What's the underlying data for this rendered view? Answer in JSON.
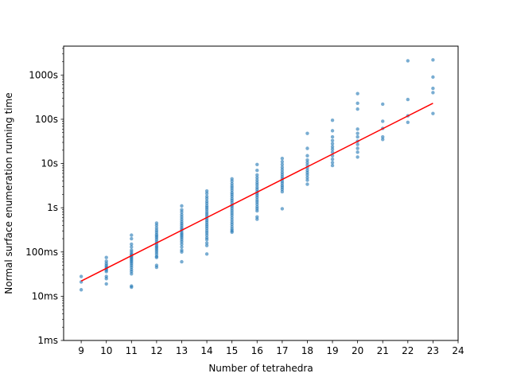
{
  "chart_data": {
    "type": "scatter",
    "title": "",
    "xlabel": "Number of tetrahedra",
    "ylabel": "Normal surface enumeration running time",
    "xlim": [
      8.3,
      24.0
    ],
    "ylim": [
      0.001,
      4500
    ],
    "yscale": "log",
    "grid": false,
    "x_ticks": [
      9,
      10,
      11,
      12,
      13,
      14,
      15,
      16,
      17,
      18,
      19,
      20,
      21,
      22,
      23,
      24
    ],
    "x_tick_labels": [
      "9",
      "10",
      "11",
      "12",
      "13",
      "14",
      "15",
      "16",
      "17",
      "18",
      "19",
      "20",
      "21",
      "22",
      "23",
      "24"
    ],
    "y_ticks": [
      0.001,
      0.01,
      0.1,
      1,
      10,
      100,
      1000
    ],
    "y_tick_labels": [
      "1ms",
      "10ms",
      "100ms",
      "1s",
      "10s",
      "100s",
      "1000s"
    ],
    "point_color": "#1f77b4",
    "fit_color": "#ff0000",
    "series": [
      {
        "points": [
          {
            "x": 9,
            "y": 0.028
          },
          {
            "x": 9,
            "y": 0.021
          },
          {
            "x": 9,
            "y": 0.014
          },
          {
            "x": 10,
            "y": 0.075
          },
          {
            "x": 10,
            "y": 0.062
          },
          {
            "x": 10,
            "y": 0.055
          },
          {
            "x": 10,
            "y": 0.05
          },
          {
            "x": 10,
            "y": 0.046
          },
          {
            "x": 10,
            "y": 0.042
          },
          {
            "x": 10,
            "y": 0.039
          },
          {
            "x": 10,
            "y": 0.036
          },
          {
            "x": 10,
            "y": 0.028
          },
          {
            "x": 10,
            "y": 0.025
          },
          {
            "x": 10,
            "y": 0.019
          },
          {
            "x": 11,
            "y": 0.24
          },
          {
            "x": 11,
            "y": 0.2
          },
          {
            "x": 11,
            "y": 0.15
          },
          {
            "x": 11,
            "y": 0.13
          },
          {
            "x": 11,
            "y": 0.11
          },
          {
            "x": 11,
            "y": 0.1
          },
          {
            "x": 11,
            "y": 0.09
          },
          {
            "x": 11,
            "y": 0.085
          },
          {
            "x": 11,
            "y": 0.08
          },
          {
            "x": 11,
            "y": 0.075
          },
          {
            "x": 11,
            "y": 0.07
          },
          {
            "x": 11,
            "y": 0.065
          },
          {
            "x": 11,
            "y": 0.06
          },
          {
            "x": 11,
            "y": 0.055
          },
          {
            "x": 11,
            "y": 0.05
          },
          {
            "x": 11,
            "y": 0.045
          },
          {
            "x": 11,
            "y": 0.04
          },
          {
            "x": 11,
            "y": 0.036
          },
          {
            "x": 11,
            "y": 0.032
          },
          {
            "x": 11,
            "y": 0.017
          },
          {
            "x": 11,
            "y": 0.016
          },
          {
            "x": 12,
            "y": 0.45
          },
          {
            "x": 12,
            "y": 0.4
          },
          {
            "x": 12,
            "y": 0.35
          },
          {
            "x": 12,
            "y": 0.31
          },
          {
            "x": 12,
            "y": 0.28
          },
          {
            "x": 12,
            "y": 0.25
          },
          {
            "x": 12,
            "y": 0.23
          },
          {
            "x": 12,
            "y": 0.21
          },
          {
            "x": 12,
            "y": 0.19
          },
          {
            "x": 12,
            "y": 0.17
          },
          {
            "x": 12,
            "y": 0.155
          },
          {
            "x": 12,
            "y": 0.14
          },
          {
            "x": 12,
            "y": 0.13
          },
          {
            "x": 12,
            "y": 0.12
          },
          {
            "x": 12,
            "y": 0.11
          },
          {
            "x": 12,
            "y": 0.1
          },
          {
            "x": 12,
            "y": 0.09
          },
          {
            "x": 12,
            "y": 0.08
          },
          {
            "x": 12,
            "y": 0.075
          },
          {
            "x": 12,
            "y": 0.05
          },
          {
            "x": 12,
            "y": 0.045
          },
          {
            "x": 13,
            "y": 1.1
          },
          {
            "x": 13,
            "y": 0.9
          },
          {
            "x": 13,
            "y": 0.8
          },
          {
            "x": 13,
            "y": 0.7
          },
          {
            "x": 13,
            "y": 0.62
          },
          {
            "x": 13,
            "y": 0.55
          },
          {
            "x": 13,
            "y": 0.49
          },
          {
            "x": 13,
            "y": 0.44
          },
          {
            "x": 13,
            "y": 0.4
          },
          {
            "x": 13,
            "y": 0.36
          },
          {
            "x": 13,
            "y": 0.33
          },
          {
            "x": 13,
            "y": 0.3
          },
          {
            "x": 13,
            "y": 0.27
          },
          {
            "x": 13,
            "y": 0.25
          },
          {
            "x": 13,
            "y": 0.23
          },
          {
            "x": 13,
            "y": 0.21
          },
          {
            "x": 13,
            "y": 0.19
          },
          {
            "x": 13,
            "y": 0.17
          },
          {
            "x": 13,
            "y": 0.15
          },
          {
            "x": 13,
            "y": 0.13
          },
          {
            "x": 13,
            "y": 0.11
          },
          {
            "x": 13,
            "y": 0.1
          },
          {
            "x": 13,
            "y": 0.06
          },
          {
            "x": 14,
            "y": 2.4
          },
          {
            "x": 14,
            "y": 2.1
          },
          {
            "x": 14,
            "y": 1.8
          },
          {
            "x": 14,
            "y": 1.6
          },
          {
            "x": 14,
            "y": 1.4
          },
          {
            "x": 14,
            "y": 1.25
          },
          {
            "x": 14,
            "y": 1.1
          },
          {
            "x": 14,
            "y": 1.0
          },
          {
            "x": 14,
            "y": 0.9
          },
          {
            "x": 14,
            "y": 0.8
          },
          {
            "x": 14,
            "y": 0.72
          },
          {
            "x": 14,
            "y": 0.65
          },
          {
            "x": 14,
            "y": 0.58
          },
          {
            "x": 14,
            "y": 0.52
          },
          {
            "x": 14,
            "y": 0.47
          },
          {
            "x": 14,
            "y": 0.42
          },
          {
            "x": 14,
            "y": 0.38
          },
          {
            "x": 14,
            "y": 0.34
          },
          {
            "x": 14,
            "y": 0.3
          },
          {
            "x": 14,
            "y": 0.27
          },
          {
            "x": 14,
            "y": 0.24
          },
          {
            "x": 14,
            "y": 0.21
          },
          {
            "x": 14,
            "y": 0.19
          },
          {
            "x": 14,
            "y": 0.16
          },
          {
            "x": 14,
            "y": 0.14
          },
          {
            "x": 14,
            "y": 0.09
          },
          {
            "x": 15,
            "y": 4.5
          },
          {
            "x": 15,
            "y": 4.0
          },
          {
            "x": 15,
            "y": 3.5
          },
          {
            "x": 15,
            "y": 3.1
          },
          {
            "x": 15,
            "y": 2.8
          },
          {
            "x": 15,
            "y": 2.5
          },
          {
            "x": 15,
            "y": 2.2
          },
          {
            "x": 15,
            "y": 2.0
          },
          {
            "x": 15,
            "y": 1.8
          },
          {
            "x": 15,
            "y": 1.6
          },
          {
            "x": 15,
            "y": 1.45
          },
          {
            "x": 15,
            "y": 1.3
          },
          {
            "x": 15,
            "y": 1.15
          },
          {
            "x": 15,
            "y": 1.05
          },
          {
            "x": 15,
            "y": 0.95
          },
          {
            "x": 15,
            "y": 0.85
          },
          {
            "x": 15,
            "y": 0.76
          },
          {
            "x": 15,
            "y": 0.68
          },
          {
            "x": 15,
            "y": 0.6
          },
          {
            "x": 15,
            "y": 0.53
          },
          {
            "x": 15,
            "y": 0.47
          },
          {
            "x": 15,
            "y": 0.42
          },
          {
            "x": 15,
            "y": 0.37
          },
          {
            "x": 15,
            "y": 0.33
          },
          {
            "x": 15,
            "y": 0.3
          },
          {
            "x": 15,
            "y": 0.28
          },
          {
            "x": 16,
            "y": 9.5
          },
          {
            "x": 16,
            "y": 7.0
          },
          {
            "x": 16,
            "y": 5.5
          },
          {
            "x": 16,
            "y": 4.8
          },
          {
            "x": 16,
            "y": 4.2
          },
          {
            "x": 16,
            "y": 3.7
          },
          {
            "x": 16,
            "y": 3.3
          },
          {
            "x": 16,
            "y": 2.9
          },
          {
            "x": 16,
            "y": 2.6
          },
          {
            "x": 16,
            "y": 2.3
          },
          {
            "x": 16,
            "y": 2.1
          },
          {
            "x": 16,
            "y": 1.9
          },
          {
            "x": 16,
            "y": 1.7
          },
          {
            "x": 16,
            "y": 1.5
          },
          {
            "x": 16,
            "y": 1.35
          },
          {
            "x": 16,
            "y": 1.2
          },
          {
            "x": 16,
            "y": 1.05
          },
          {
            "x": 16,
            "y": 0.95
          },
          {
            "x": 16,
            "y": 0.85
          },
          {
            "x": 16,
            "y": 0.62
          },
          {
            "x": 16,
            "y": 0.55
          },
          {
            "x": 17,
            "y": 13
          },
          {
            "x": 17,
            "y": 11
          },
          {
            "x": 17,
            "y": 9.5
          },
          {
            "x": 17,
            "y": 8.2
          },
          {
            "x": 17,
            "y": 7.2
          },
          {
            "x": 17,
            "y": 6.3
          },
          {
            "x": 17,
            "y": 5.6
          },
          {
            "x": 17,
            "y": 5.0
          },
          {
            "x": 17,
            "y": 4.5
          },
          {
            "x": 17,
            "y": 4.0
          },
          {
            "x": 17,
            "y": 3.6
          },
          {
            "x": 17,
            "y": 3.2
          },
          {
            "x": 17,
            "y": 2.9
          },
          {
            "x": 17,
            "y": 2.6
          },
          {
            "x": 17,
            "y": 2.3
          },
          {
            "x": 17,
            "y": 0.95
          },
          {
            "x": 18,
            "y": 48
          },
          {
            "x": 18,
            "y": 22
          },
          {
            "x": 18,
            "y": 15
          },
          {
            "x": 18,
            "y": 12
          },
          {
            "x": 18,
            "y": 10.5
          },
          {
            "x": 18,
            "y": 9.2
          },
          {
            "x": 18,
            "y": 8.0
          },
          {
            "x": 18,
            "y": 7.0
          },
          {
            "x": 18,
            "y": 6.2
          },
          {
            "x": 18,
            "y": 5.5
          },
          {
            "x": 18,
            "y": 4.8
          },
          {
            "x": 18,
            "y": 4.2
          },
          {
            "x": 18,
            "y": 3.4
          },
          {
            "x": 19,
            "y": 95
          },
          {
            "x": 19,
            "y": 55
          },
          {
            "x": 19,
            "y": 40
          },
          {
            "x": 19,
            "y": 33
          },
          {
            "x": 19,
            "y": 28
          },
          {
            "x": 19,
            "y": 24
          },
          {
            "x": 19,
            "y": 21
          },
          {
            "x": 19,
            "y": 18
          },
          {
            "x": 19,
            "y": 15
          },
          {
            "x": 19,
            "y": 12.5
          },
          {
            "x": 19,
            "y": 10.5
          },
          {
            "x": 19,
            "y": 9.0
          },
          {
            "x": 20,
            "y": 380
          },
          {
            "x": 20,
            "y": 230
          },
          {
            "x": 20,
            "y": 170
          },
          {
            "x": 20,
            "y": 60
          },
          {
            "x": 20,
            "y": 48
          },
          {
            "x": 20,
            "y": 40
          },
          {
            "x": 20,
            "y": 32
          },
          {
            "x": 20,
            "y": 27
          },
          {
            "x": 20,
            "y": 22
          },
          {
            "x": 20,
            "y": 18
          },
          {
            "x": 20,
            "y": 14
          },
          {
            "x": 21,
            "y": 220
          },
          {
            "x": 21,
            "y": 90
          },
          {
            "x": 21,
            "y": 62
          },
          {
            "x": 21,
            "y": 40
          },
          {
            "x": 21,
            "y": 35
          },
          {
            "x": 22,
            "y": 2100
          },
          {
            "x": 22,
            "y": 280
          },
          {
            "x": 22,
            "y": 120
          },
          {
            "x": 22,
            "y": 85
          },
          {
            "x": 23,
            "y": 2200
          },
          {
            "x": 23,
            "y": 900
          },
          {
            "x": 23,
            "y": 500
          },
          {
            "x": 23,
            "y": 400
          },
          {
            "x": 23,
            "y": 135
          }
        ]
      }
    ],
    "fit_line": {
      "x": [
        9,
        23
      ],
      "y": [
        0.022,
        230
      ]
    }
  }
}
